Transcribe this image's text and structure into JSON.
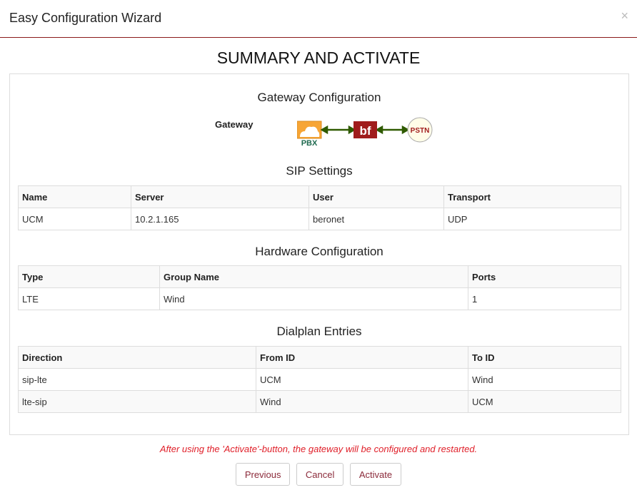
{
  "window": {
    "title": "Easy Configuration Wizard",
    "close": "×"
  },
  "page_title": "SUMMARY AND ACTIVATE",
  "gateway": {
    "heading": "Gateway Configuration",
    "label": "Gateway",
    "pbx": "PBX",
    "bf": "bf",
    "pstn": "PSTN",
    "colors": {
      "pbx": "#f7a535",
      "bf": "#a01c1c",
      "arrow": "#2f5a00"
    }
  },
  "sip": {
    "heading": "SIP Settings",
    "headers": [
      "Name",
      "Server",
      "User",
      "Transport"
    ],
    "rows": [
      [
        "UCM",
        "10.2.1.165",
        "beronet",
        "UDP"
      ]
    ]
  },
  "hardware": {
    "heading": "Hardware Configuration",
    "headers": [
      "Type",
      "Group Name",
      "Ports"
    ],
    "rows": [
      [
        "LTE",
        "Wind",
        "1"
      ]
    ]
  },
  "dialplan": {
    "heading": "Dialplan Entries",
    "headers": [
      "Direction",
      "From ID",
      "To ID"
    ],
    "rows": [
      [
        "sip-lte",
        "UCM",
        "Wind"
      ],
      [
        "lte-sip",
        "Wind",
        "UCM"
      ]
    ]
  },
  "note": "After using the 'Activate'-button, the gateway will be configured and restarted.",
  "buttons": {
    "previous": "Previous",
    "cancel": "Cancel",
    "activate": "Activate"
  }
}
